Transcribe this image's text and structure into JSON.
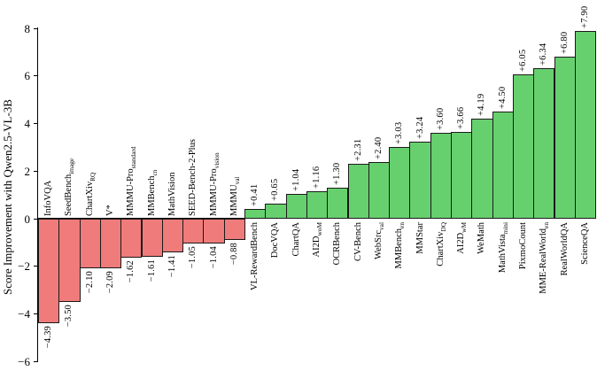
{
  "chart_data": {
    "type": "bar",
    "title": "",
    "ylabel": "Score Improvement with Qwen2.5-VL-3B",
    "xlabel": "",
    "ylim": [
      -6,
      8
    ],
    "yticks": [
      8,
      6,
      4,
      2,
      0,
      -2,
      -4,
      -6
    ],
    "grid": false,
    "legend": "none",
    "colors": {
      "positive": "#67d06e",
      "negative": "#f07b7b",
      "edge": "#1a1a1a",
      "axis": "#000000"
    },
    "bars": [
      {
        "label": "InfoVQA",
        "sub": "",
        "value": -4.39
      },
      {
        "label": "SeedBench",
        "sub": "image",
        "value": -3.5
      },
      {
        "label": "ChartXiv",
        "sub": "RQ",
        "value": -2.1
      },
      {
        "label": "V*",
        "sub": "",
        "value": -2.09
      },
      {
        "label": "MMMU-Pro",
        "sub": "standard",
        "value": -1.62
      },
      {
        "label": "MMBench",
        "sub": "cn",
        "value": -1.61
      },
      {
        "label": "MathVision",
        "sub": "",
        "value": -1.41
      },
      {
        "label": "SEED-Bench-2-Plus",
        "sub": "",
        "value": -1.05
      },
      {
        "label": "MMMU-Pro",
        "sub": "vision",
        "value": -1.04
      },
      {
        "label": "MMMU",
        "sub": "val",
        "value": -0.88
      },
      {
        "label": "VL-RewardBench",
        "sub": "",
        "value": 0.41
      },
      {
        "label": "DocVQA",
        "sub": "",
        "value": 0.65
      },
      {
        "label": "ChartQA",
        "sub": "",
        "value": 1.04
      },
      {
        "label": "AI2D",
        "sub": "woM",
        "value": 1.16
      },
      {
        "label": "OCRBench",
        "sub": "",
        "value": 1.3
      },
      {
        "label": "CV-Bench",
        "sub": "",
        "value": 2.31
      },
      {
        "label": "WebSrc",
        "sub": "val",
        "value": 2.4
      },
      {
        "label": "MMBench",
        "sub": "en",
        "value": 3.03
      },
      {
        "label": "MMStar",
        "sub": "",
        "value": 3.24
      },
      {
        "label": "ChartXiv",
        "sub": "DQ",
        "value": 3.6
      },
      {
        "label": "AI2D",
        "sub": "wM",
        "value": 3.66
      },
      {
        "label": "WeMath",
        "sub": "",
        "value": 4.19
      },
      {
        "label": "MathVista",
        "sub": "mini",
        "value": 4.5
      },
      {
        "label": "PixmoCount",
        "sub": "",
        "value": 6.05
      },
      {
        "label": "MME-RealWorld",
        "sub": "en",
        "value": 6.34
      },
      {
        "label": "RealWorldQA",
        "sub": "",
        "value": 6.8
      },
      {
        "label": "ScienceQA",
        "sub": "",
        "value": 7.9
      }
    ]
  }
}
